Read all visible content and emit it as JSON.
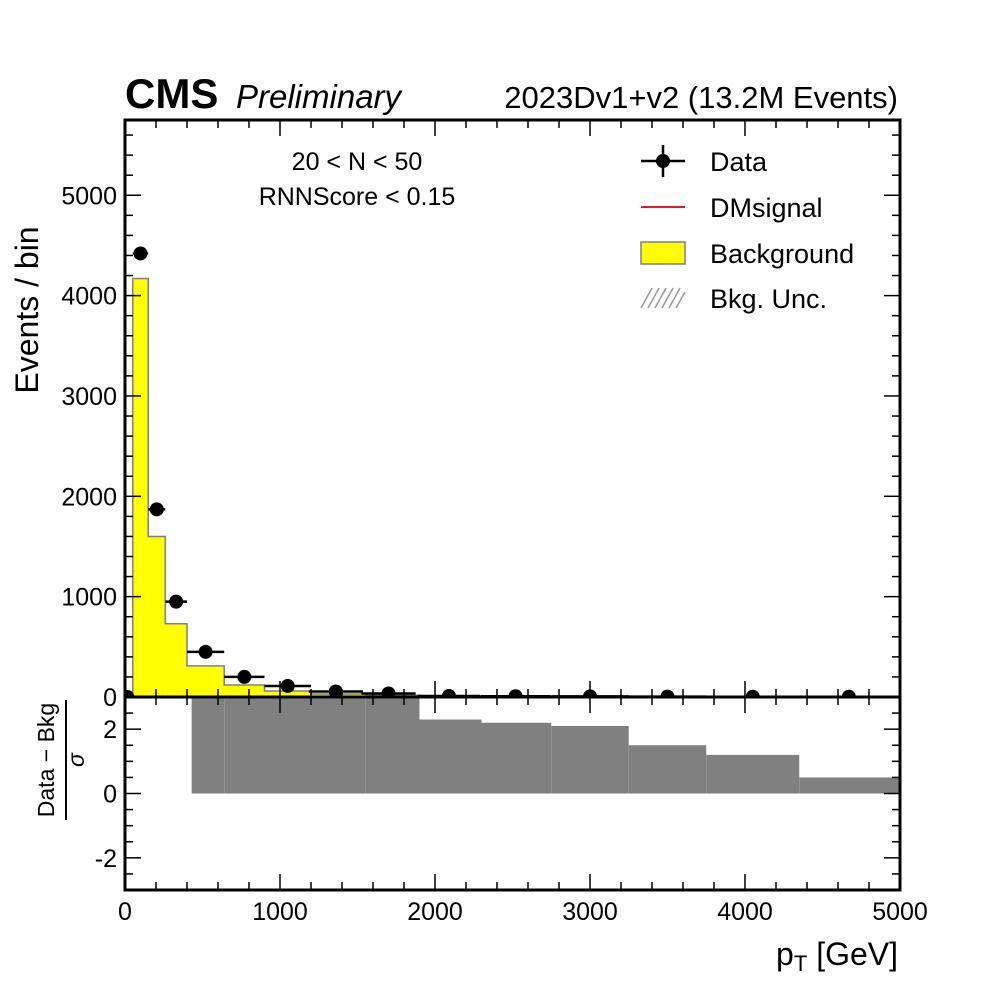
{
  "header": {
    "experiment": "CMS",
    "status": "Preliminary",
    "dataset": "2023Dv1+v2 (13.2M Events)"
  },
  "annotations": [
    "20 < N < 50",
    "RNNScore < 0.15"
  ],
  "legend": {
    "placement": "top-right",
    "entries": [
      {
        "label": "Data",
        "kind": "errorbar-marker",
        "color": "#000000"
      },
      {
        "label": "DMsignal",
        "kind": "line",
        "color": "#e41a1c"
      },
      {
        "label": "Background",
        "kind": "filled",
        "color": "#ffff00"
      },
      {
        "label": "Bkg. Unc.",
        "kind": "hatched",
        "color": "#9a9a9a"
      }
    ]
  },
  "colors": {
    "background_fill": "#ffff00",
    "background_edge": "#808080",
    "signal": "#e41a1c",
    "data": "#000000",
    "ratio_fill": "#808080"
  },
  "chart_data": [
    {
      "type": "bar",
      "panel": "main",
      "xlabel": "p_T [GeV]",
      "ylabel": "Events / bin",
      "xlim": [
        0,
        5000
      ],
      "ylim": [
        0,
        5750
      ],
      "xticks": [
        0,
        1000,
        2000,
        3000,
        4000,
        5000
      ],
      "yticks": [
        0,
        1000,
        2000,
        3000,
        4000,
        5000
      ],
      "bin_edges": [
        0,
        50,
        150,
        260,
        400,
        640,
        900,
        1200,
        1550,
        1900,
        2300,
        2750,
        3250,
        3750,
        4350,
        5000
      ],
      "series": [
        {
          "name": "Background",
          "style": "step-filled",
          "values": [
            0,
            4170,
            1600,
            730,
            310,
            120,
            60,
            30,
            18,
            10,
            7,
            5,
            3,
            2,
            1
          ]
        },
        {
          "name": "DMsignal",
          "style": "step-line",
          "values": [
            3,
            3,
            3,
            3,
            3,
            3,
            3,
            3,
            3,
            3,
            3,
            3,
            3,
            3,
            3
          ]
        },
        {
          "name": "Data",
          "style": "points-with-errors",
          "x": [
            15,
            100,
            205,
            330,
            520,
            770,
            1050,
            1360,
            1700,
            2090,
            2520,
            3000,
            3500,
            4050,
            4670
          ],
          "xerr": [
            15,
            50,
            55,
            70,
            120,
            130,
            150,
            175,
            175,
            200,
            225,
            250,
            250,
            300,
            325
          ],
          "y": [
            0,
            4420,
            1870,
            950,
            450,
            200,
            110,
            55,
            35,
            10,
            8,
            6,
            4,
            3,
            2
          ]
        }
      ]
    },
    {
      "type": "bar",
      "panel": "ratio",
      "ylabel": "Data − Bkg / σ",
      "xlabel": "p_T [GeV]",
      "xlim": [
        0,
        5000
      ],
      "ylim": [
        -3,
        3
      ],
      "yticks": [
        -2,
        0,
        2
      ],
      "xticks": [
        0,
        1000,
        2000,
        3000,
        4000,
        5000
      ],
      "bin_edges": [
        0,
        430,
        640,
        900,
        1200,
        1550,
        1900,
        2300,
        2750,
        3250,
        3750,
        4350,
        5000
      ],
      "values": [
        0,
        5,
        5,
        5,
        5,
        5,
        2.3,
        2.2,
        2.1,
        1.5,
        1.2,
        0.5
      ]
    }
  ]
}
